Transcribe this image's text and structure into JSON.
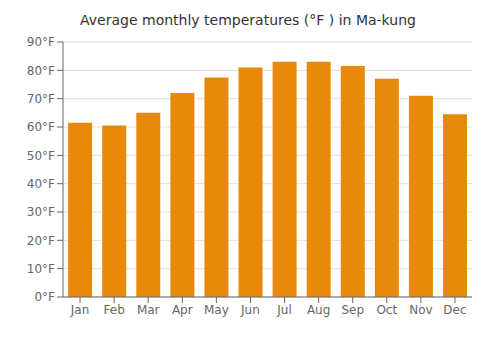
{
  "chart_data": {
    "type": "bar",
    "title": "Average monthly temperatures (°F ) in Ma-kung",
    "categories": [
      "Jan",
      "Feb",
      "Mar",
      "Apr",
      "May",
      "Jun",
      "Jul",
      "Aug",
      "Sep",
      "Oct",
      "Nov",
      "Dec"
    ],
    "values": [
      61.5,
      60.5,
      65.0,
      72.0,
      77.5,
      81.0,
      83.0,
      83.0,
      81.5,
      77.0,
      71.0,
      64.5
    ],
    "color": "#E8890A",
    "ylim": [
      0,
      90
    ],
    "yticks": [
      {
        "value": 0,
        "label": "0°F"
      },
      {
        "value": 10,
        "label": "10°F"
      },
      {
        "value": 20,
        "label": "20°F"
      },
      {
        "value": 30,
        "label": "30°F"
      },
      {
        "value": 40,
        "label": "40°F"
      },
      {
        "value": 50,
        "label": "50°F"
      },
      {
        "value": 60,
        "label": "60°F"
      },
      {
        "value": 70,
        "label": "70°F"
      },
      {
        "value": 80,
        "label": "80°F"
      },
      {
        "value": 90,
        "label": "90°F"
      }
    ],
    "grid": true
  }
}
